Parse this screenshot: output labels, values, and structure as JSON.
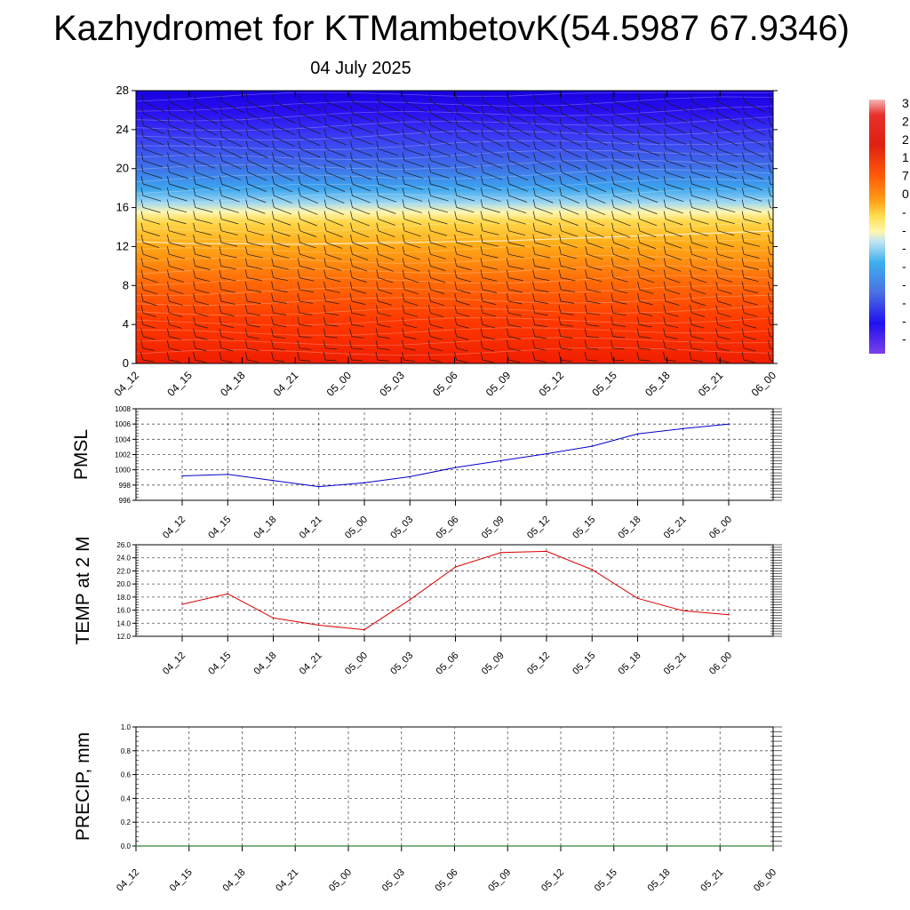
{
  "title": "Kazhydromet for KTMambetovK(54.5987 67.9346)",
  "subtitle": "04 July 2025",
  "time_labels": [
    "04_12",
    "04_15",
    "04_18",
    "04_21",
    "05_00",
    "05_03",
    "05_06",
    "05_09",
    "05_12",
    "05_15",
    "05_18",
    "05_21",
    "06_00"
  ],
  "colorbar": {
    "labels": [
      "3",
      "2",
      "2",
      "1",
      "7",
      "0",
      "-",
      "-",
      "-",
      "-",
      "-",
      "-",
      "-",
      "-"
    ]
  },
  "chart_data": [
    {
      "type": "heatmap",
      "title": "",
      "ylim": [
        0,
        28
      ],
      "yticks": [
        0,
        4,
        8,
        12,
        16,
        20,
        24,
        28
      ],
      "x": [
        "04_12",
        "04_15",
        "04_18",
        "04_21",
        "05_00",
        "05_03",
        "05_06",
        "05_09",
        "05_12",
        "05_15",
        "05_18",
        "05_21",
        "06_00"
      ],
      "freezing_level": [
        12.5,
        12.3,
        12.3,
        12.2,
        12.3,
        12.4,
        12.5,
        12.6,
        12.8,
        13.0,
        13.2,
        13.4,
        13.6
      ],
      "overlay": "wind barbs"
    },
    {
      "type": "line",
      "ylabel": "PMSL",
      "ylim": [
        996,
        1008
      ],
      "yticks": [
        996,
        998,
        1000,
        1002,
        1004,
        1006,
        1008
      ],
      "x": [
        "04_12",
        "04_15",
        "04_18",
        "04_21",
        "05_00",
        "05_03",
        "05_06",
        "05_09",
        "05_12",
        "05_15",
        "05_18",
        "05_21",
        "06_00"
      ],
      "values": [
        999.2,
        999.4,
        998.6,
        997.8,
        998.3,
        999.1,
        1000.3,
        1001.2,
        1002.1,
        1003.1,
        1004.7,
        1005.4,
        1006.0
      ],
      "color": "#0000cc"
    },
    {
      "type": "line",
      "ylabel": "TEMP at 2 M",
      "ylim": [
        12.0,
        26.0
      ],
      "yticks": [
        "12.0",
        "14.0",
        "16.0",
        "18.0",
        "20.0",
        "22.0",
        "24.0",
        "26.0"
      ],
      "x": [
        "04_12",
        "04_15",
        "04_18",
        "04_21",
        "05_00",
        "05_03",
        "05_06",
        "05_09",
        "05_12",
        "05_15",
        "05_18",
        "05_21",
        "06_00"
      ],
      "values": [
        16.9,
        18.5,
        14.8,
        13.7,
        13.0,
        17.6,
        22.6,
        24.8,
        25.0,
        22.2,
        17.8,
        15.9,
        15.3
      ],
      "color": "#dd0000"
    },
    {
      "type": "line",
      "ylabel": "PRECIP, mm",
      "ylim": [
        0.0,
        1.0
      ],
      "yticks": [
        "0.0",
        "0.2",
        "0.4",
        "0.6",
        "0.8",
        "1.0"
      ],
      "x": [
        "04_12",
        "04_15",
        "04_18",
        "04_21",
        "05_00",
        "05_03",
        "05_06",
        "05_09",
        "05_12",
        "05_15",
        "05_18",
        "05_21",
        "06_00"
      ],
      "values": [
        0,
        0,
        0,
        0,
        0,
        0,
        0,
        0,
        0,
        0,
        0,
        0,
        0
      ],
      "color": "#006600"
    }
  ]
}
